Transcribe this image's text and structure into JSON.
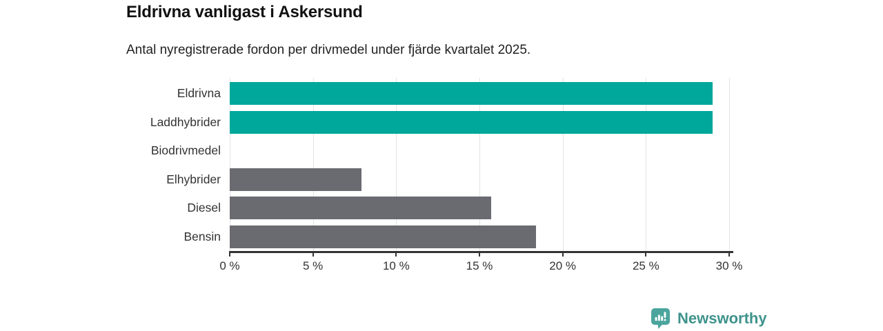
{
  "header": {
    "title": "Eldrivna vanligast i Askersund",
    "subtitle": "Antal nyregistrerade fordon per drivmedel under fjärde kvartalet 2025."
  },
  "chart_data": {
    "type": "bar",
    "orientation": "horizontal",
    "title": "Eldrivna vanligast i Askersund",
    "subtitle": "Antal nyregistrerade fordon per drivmedel under fjärde kvartalet 2025.",
    "categories": [
      "Eldrivna",
      "Laddhybrider",
      "Biodrivmedel",
      "Elhybrider",
      "Diesel",
      "Bensin"
    ],
    "values": [
      29,
      29,
      0,
      7.9,
      15.7,
      18.4
    ],
    "unit": "%",
    "xlabel": "",
    "ylabel": "",
    "xlim": [
      0,
      30
    ],
    "x_ticks": {
      "values": [
        0,
        5,
        10,
        15,
        20,
        25,
        30
      ],
      "labels": [
        "0 %",
        "5 %",
        "10 %",
        "15 %",
        "20 %",
        "25 %",
        "30 %"
      ]
    },
    "grid": "vertical-only",
    "legend": "none",
    "bar_colors": [
      "#00a79b",
      "#00a79b",
      "#6a6a71",
      "#6a6a71",
      "#6a6a71",
      "#6a6a71"
    ]
  },
  "footer": {
    "brand_name": "Newsworthy",
    "logo_icon": "chart-speech-bubble-icon"
  },
  "colors": {
    "bar_teal": "#00a79b",
    "bar_gray": "#6a6a71",
    "gridline": "#e2e2e2",
    "axis": "#333333",
    "tick_text": "#333333",
    "category_text": "#333333",
    "title_text": "#111111",
    "subtitle_text": "#222222",
    "brand_text": "#3e938c",
    "logo_background": "#4ba59d",
    "background": "#ffffff"
  }
}
